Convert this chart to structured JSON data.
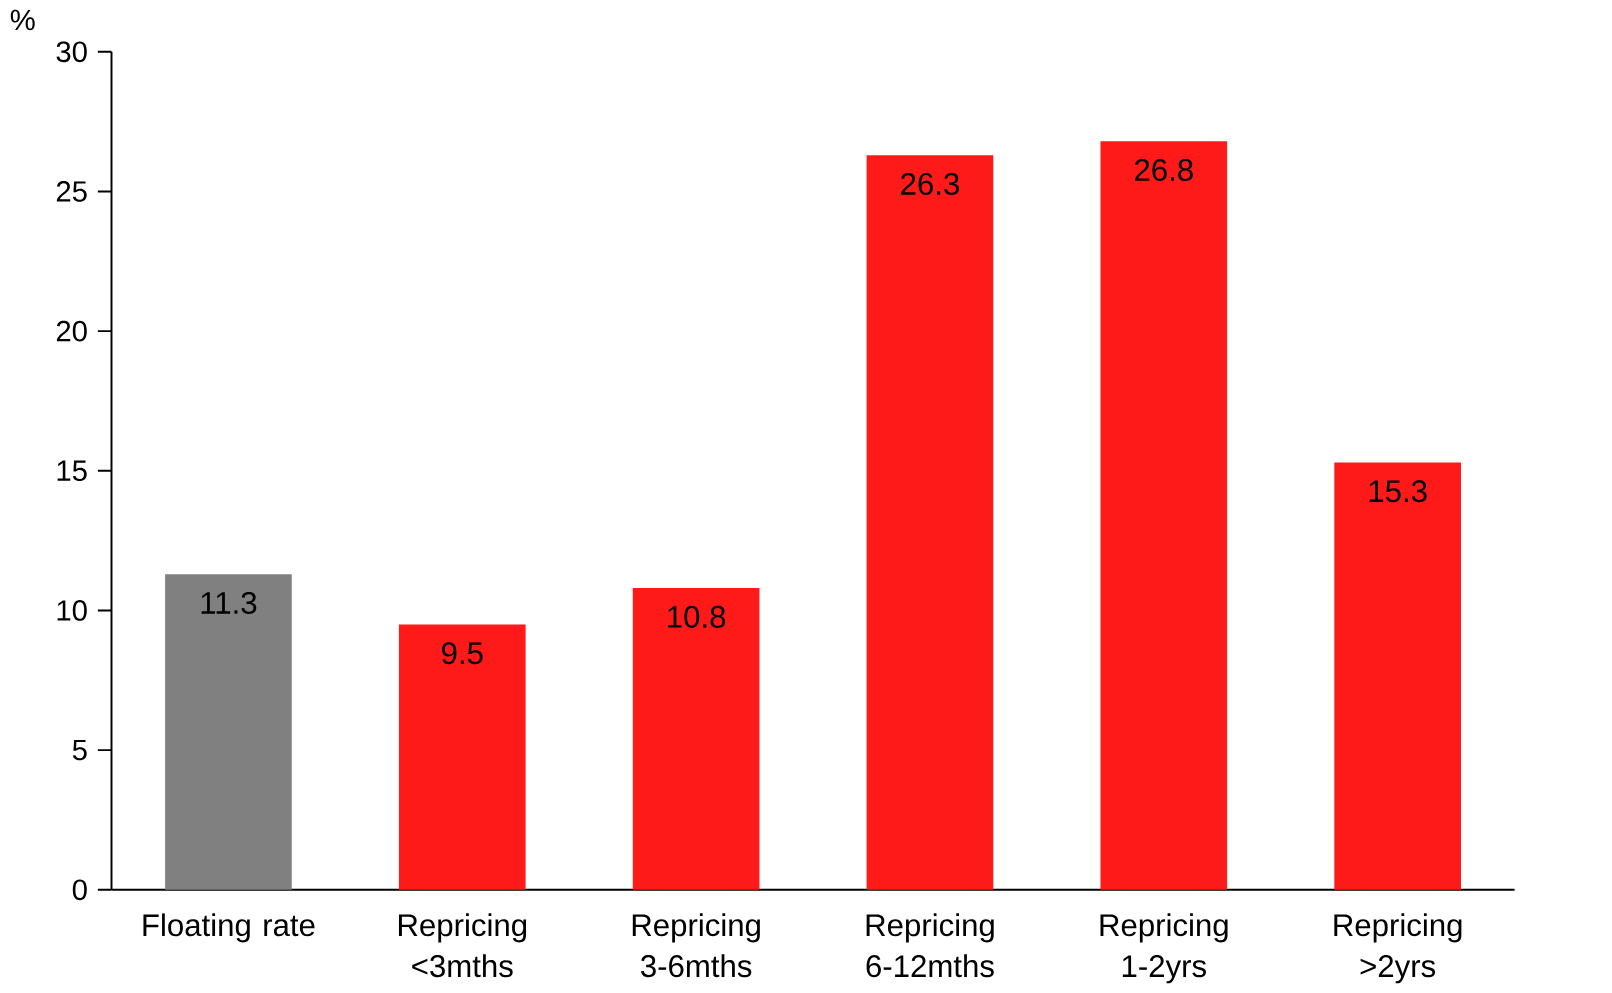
{
  "chart_data": {
    "type": "bar",
    "ylabel": "%",
    "categories": [
      "Floating rate",
      "Repricing <3mths",
      "Repricing 3-6mths",
      "Repricing 6-12mths",
      "Repricing 1-2yrs",
      "Repricing >2yrs"
    ],
    "values": [
      11.3,
      9.5,
      10.8,
      26.3,
      26.8,
      15.3
    ],
    "colors": [
      "#808080",
      "#ff1a1a",
      "#ff1a1a",
      "#ff1a1a",
      "#ff1a1a",
      "#ff1a1a"
    ],
    "ylim": [
      0,
      30
    ],
    "yticks": [
      0,
      5,
      10,
      15,
      20,
      25,
      30
    ],
    "data_labels": true
  }
}
